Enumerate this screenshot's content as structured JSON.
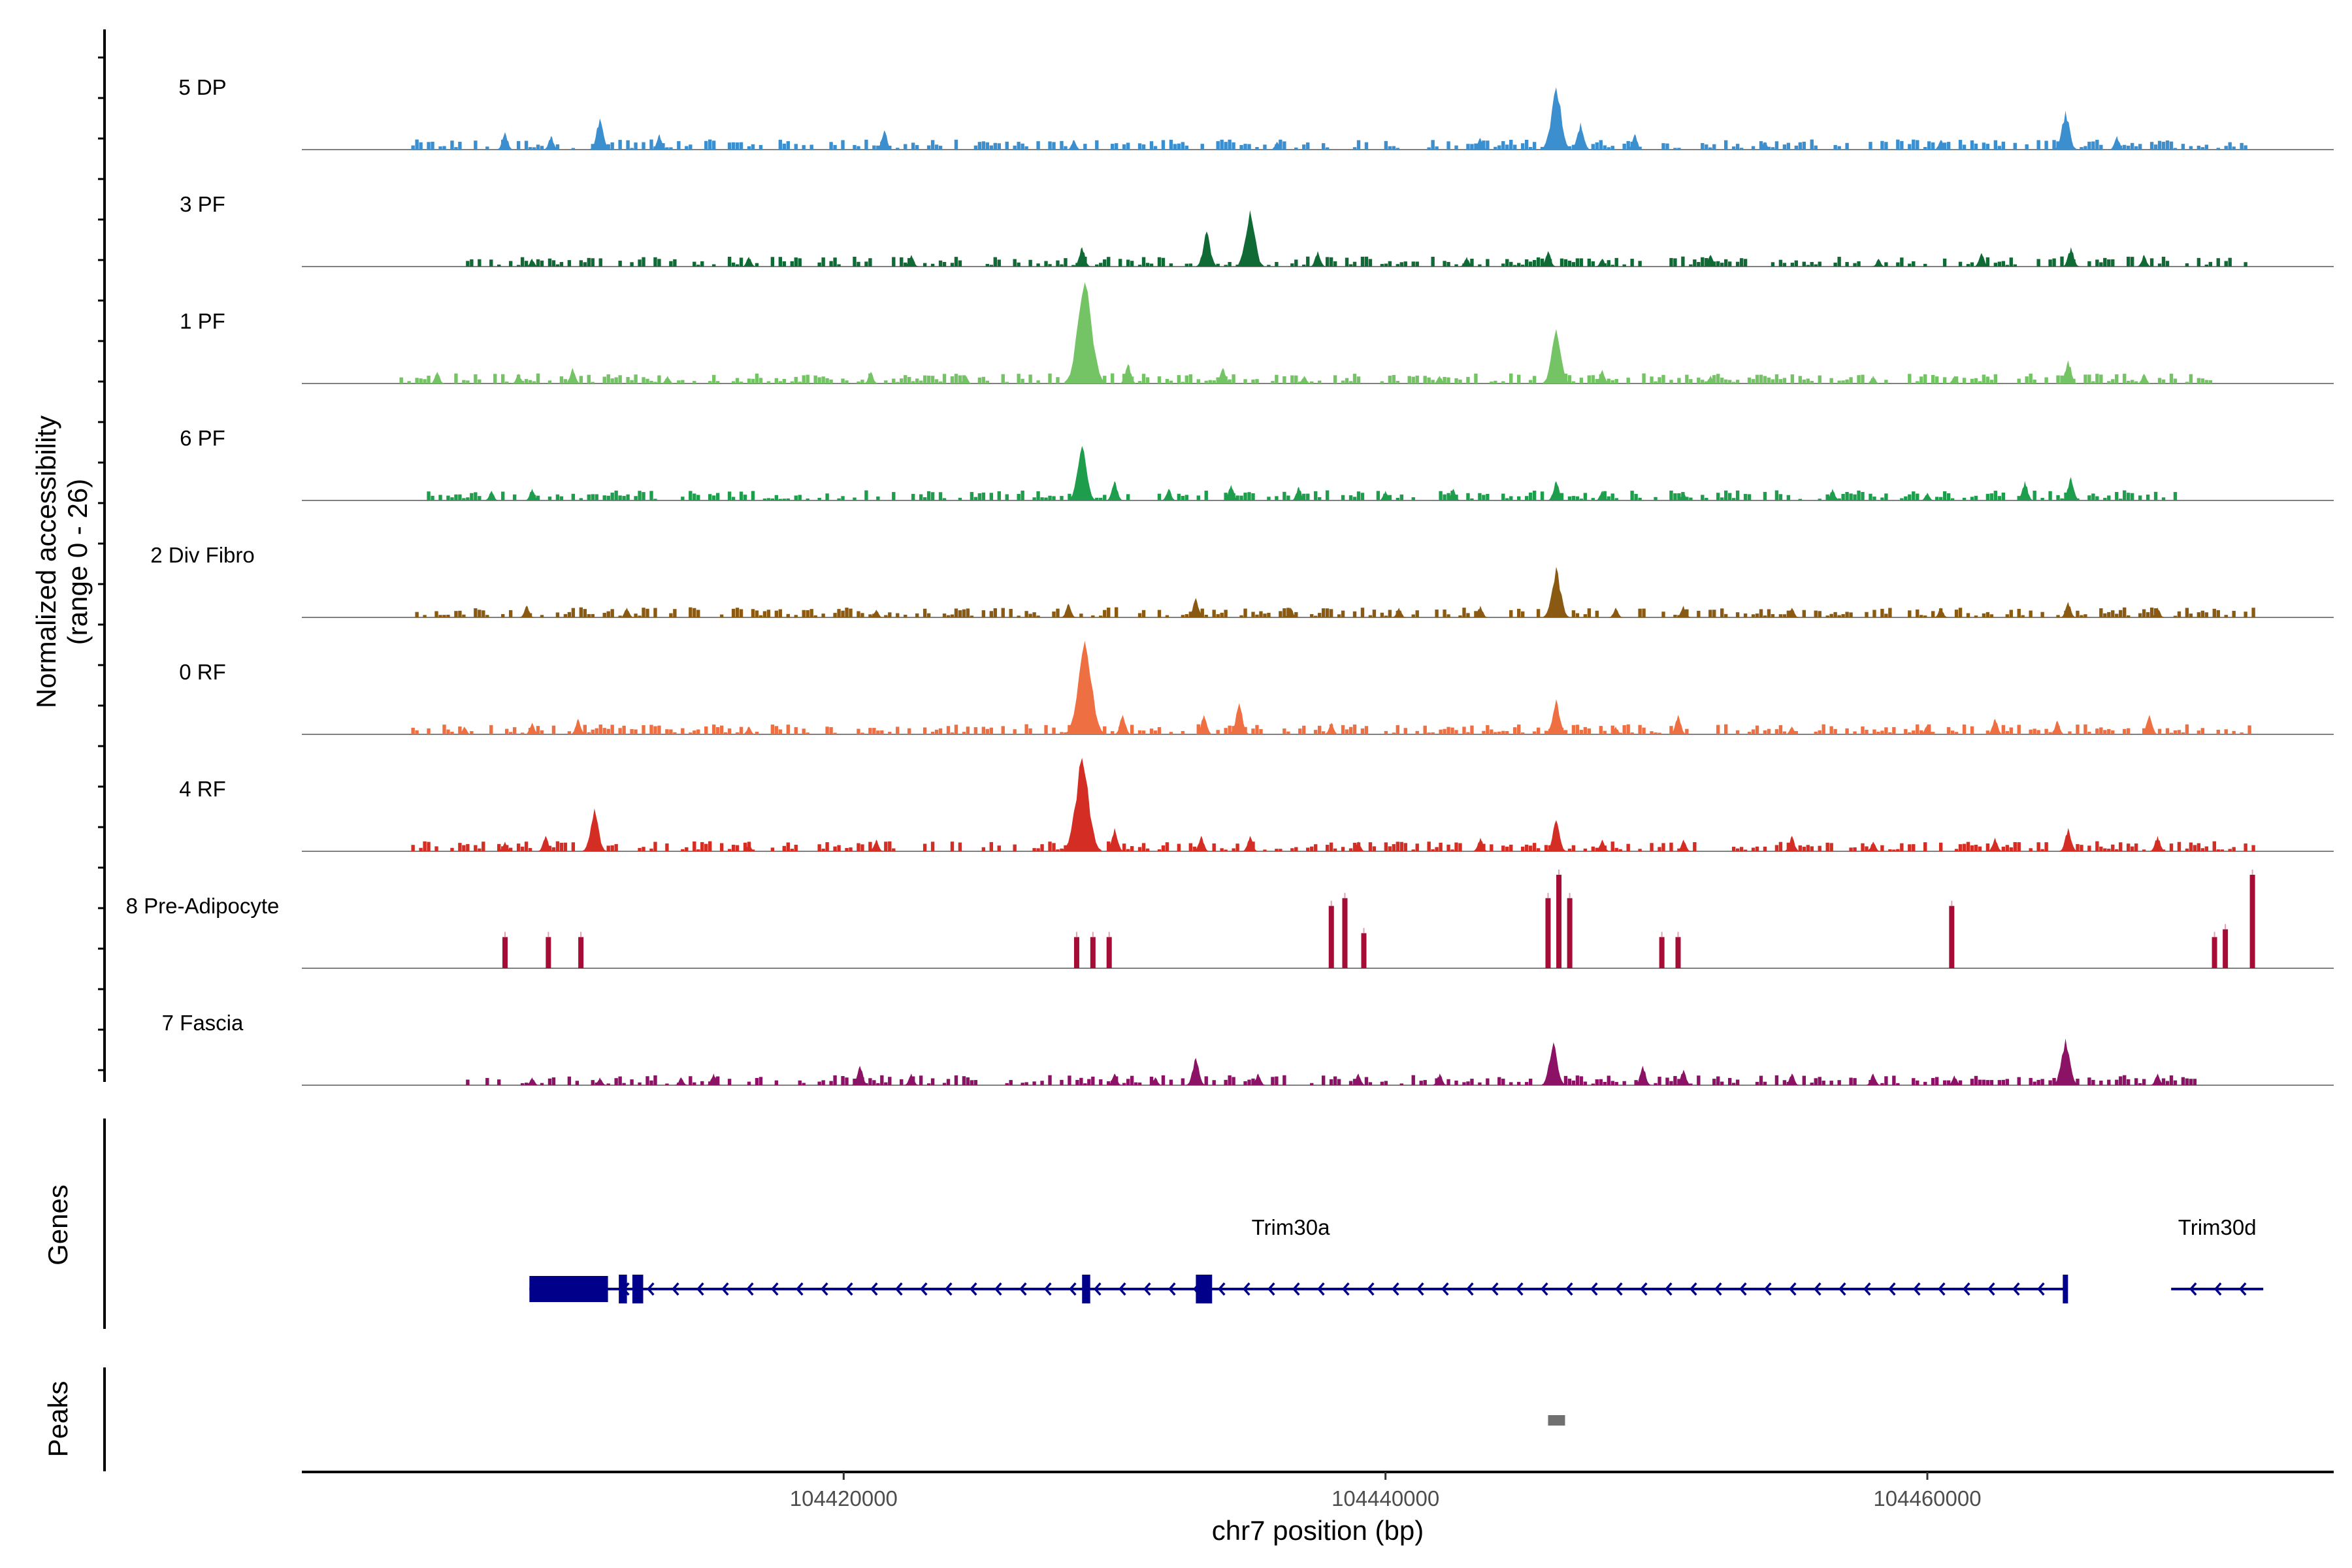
{
  "chart_data": {
    "type": "area",
    "chromosome": "chr7",
    "region": [
      104400000,
      104475000
    ],
    "ylabel": "Normalized accessibility\n(range 0 - 26)",
    "ylabel_line1": "Normalized accessibility",
    "ylabel_line2": "(range 0 - 26)",
    "ylim": [
      0,
      26
    ],
    "xlabel": "chr7 position (bp)",
    "x_ticks": [
      104420000,
      104440000,
      104460000
    ],
    "x_tick_labels": [
      "104420000",
      "104440000",
      "104460000"
    ],
    "genes_panel_label": "Genes",
    "peaks_panel_label": "Peaks",
    "series": [
      {
        "name": "5 DP",
        "color": "#3b8fcf",
        "coverage": [
          104404000,
          104472000
        ],
        "peaks": [
          [
            104407500,
            4.5
          ],
          [
            104409200,
            3.5
          ],
          [
            104411000,
            8
          ],
          [
            104413200,
            4
          ],
          [
            104421500,
            5
          ],
          [
            104428500,
            2.5
          ],
          [
            104436000,
            2
          ],
          [
            104443500,
            3
          ],
          [
            104446300,
            16
          ],
          [
            104447200,
            7
          ],
          [
            104449200,
            4
          ],
          [
            104454000,
            2
          ],
          [
            104460500,
            2.5
          ],
          [
            104465100,
            10
          ],
          [
            104467000,
            3.5
          ]
        ]
      },
      {
        "name": "3 PF",
        "color": "#0f6a35",
        "coverage": [
          104406000,
          104472000
        ],
        "peaks": [
          [
            104408500,
            2
          ],
          [
            104416500,
            2.5
          ],
          [
            104422500,
            3
          ],
          [
            104428800,
            5
          ],
          [
            104433400,
            9
          ],
          [
            104435000,
            14.5
          ],
          [
            104437500,
            4
          ],
          [
            104443000,
            2.5
          ],
          [
            104446000,
            4
          ],
          [
            104448000,
            2
          ],
          [
            104452000,
            3
          ],
          [
            104458200,
            2
          ],
          [
            104462000,
            3.5
          ],
          [
            104465300,
            5
          ],
          [
            104468000,
            3
          ]
        ]
      },
      {
        "name": "1 PF",
        "color": "#74c465",
        "coverage": [
          104403500,
          104470500
        ],
        "peaks": [
          [
            104405000,
            3
          ],
          [
            104408000,
            2.5
          ],
          [
            104410000,
            4
          ],
          [
            104413500,
            2
          ],
          [
            104421000,
            3
          ],
          [
            104424500,
            2
          ],
          [
            104428900,
            26
          ],
          [
            104430500,
            5
          ],
          [
            104434000,
            4
          ],
          [
            104437000,
            2
          ],
          [
            104442000,
            2
          ],
          [
            104446300,
            14
          ],
          [
            104448000,
            3.5
          ],
          [
            104452000,
            2
          ],
          [
            104458000,
            2
          ],
          [
            104461000,
            2
          ],
          [
            104465200,
            6
          ],
          [
            104468000,
            2.5
          ]
        ]
      },
      {
        "name": "6 PF",
        "color": "#1e9e4d",
        "coverage": [
          104404500,
          104469500
        ],
        "peaks": [
          [
            104407000,
            2.5
          ],
          [
            104408500,
            3
          ],
          [
            104428800,
            14
          ],
          [
            104430000,
            5
          ],
          [
            104432000,
            3
          ],
          [
            104434300,
            4
          ],
          [
            104436800,
            3.5
          ],
          [
            104440000,
            2.5
          ],
          [
            104442500,
            3
          ],
          [
            104446300,
            5
          ],
          [
            104448000,
            2.5
          ],
          [
            104451000,
            2
          ],
          [
            104456500,
            3
          ],
          [
            104460000,
            2
          ],
          [
            104463600,
            5
          ],
          [
            104465300,
            6
          ]
        ]
      },
      {
        "name": "2 Div Fibro",
        "color": "#8b5a12",
        "coverage": [
          104404000,
          104472000
        ],
        "peaks": [
          [
            104408300,
            3
          ],
          [
            104412000,
            2.5
          ],
          [
            104421200,
            2
          ],
          [
            104428300,
            3.5
          ],
          [
            104433000,
            5
          ],
          [
            104436500,
            2.5
          ],
          [
            104440500,
            2.5
          ],
          [
            104443500,
            3
          ],
          [
            104446300,
            13
          ],
          [
            104448500,
            2.5
          ],
          [
            104451000,
            3
          ],
          [
            104455000,
            2.5
          ],
          [
            104460500,
            2.5
          ],
          [
            104465200,
            4
          ],
          [
            104468500,
            2.5
          ]
        ]
      },
      {
        "name": "0 RF",
        "color": "#ee7042",
        "coverage": [
          104403500,
          104472000
        ],
        "peaks": [
          [
            104406000,
            2
          ],
          [
            104408500,
            3
          ],
          [
            104410200,
            4
          ],
          [
            104416500,
            2
          ],
          [
            104428900,
            24
          ],
          [
            104430300,
            5
          ],
          [
            104433300,
            5
          ],
          [
            104434600,
            8
          ],
          [
            104438000,
            3
          ],
          [
            104446300,
            9
          ],
          [
            104448500,
            2
          ],
          [
            104450800,
            5
          ],
          [
            104455000,
            2
          ],
          [
            104460000,
            2.5
          ],
          [
            104462500,
            4
          ],
          [
            104464800,
            3.5
          ],
          [
            104468200,
            5
          ]
        ]
      },
      {
        "name": "4 RF",
        "color": "#d42d23",
        "coverage": [
          104404000,
          104472000
        ],
        "peaks": [
          [
            104407500,
            2.5
          ],
          [
            104409000,
            4
          ],
          [
            104410800,
            11
          ],
          [
            104416500,
            2
          ],
          [
            104421200,
            3
          ],
          [
            104428800,
            24
          ],
          [
            104430000,
            6
          ],
          [
            104433200,
            4
          ],
          [
            104435000,
            4
          ],
          [
            104439000,
            2.5
          ],
          [
            104443500,
            3.5
          ],
          [
            104446300,
            8
          ],
          [
            104448000,
            3
          ],
          [
            104451000,
            3
          ],
          [
            104455000,
            4
          ],
          [
            104458000,
            2.5
          ],
          [
            104462500,
            3.5
          ],
          [
            104465200,
            6
          ],
          [
            104468500,
            4
          ]
        ]
      },
      {
        "name": "8 Pre-Adipocyte",
        "color": "#a50c36",
        "coverage": null,
        "peaks": [
          [
            104407500,
            8
          ],
          [
            104409100,
            8
          ],
          [
            104410300,
            8
          ],
          [
            104428600,
            8
          ],
          [
            104429200,
            8
          ],
          [
            104429800,
            8
          ],
          [
            104438000,
            16
          ],
          [
            104438500,
            18
          ],
          [
            104439200,
            9
          ],
          [
            104446000,
            18
          ],
          [
            104446400,
            24
          ],
          [
            104446800,
            18
          ],
          [
            104450200,
            8
          ],
          [
            104450800,
            8
          ],
          [
            104460900,
            16
          ],
          [
            104470600,
            8
          ],
          [
            104471000,
            10
          ],
          [
            104472000,
            24
          ]
        ]
      },
      {
        "name": "7 Fascia",
        "color": "#8c1266",
        "coverage": [
          104406000,
          104470000
        ],
        "peaks": [
          [
            104408500,
            2
          ],
          [
            104411000,
            2
          ],
          [
            104414000,
            2
          ],
          [
            104415200,
            3
          ],
          [
            104420600,
            5
          ],
          [
            104422500,
            3
          ],
          [
            104430000,
            3
          ],
          [
            104431500,
            2
          ],
          [
            104433000,
            7
          ],
          [
            104435300,
            3
          ],
          [
            104439000,
            3
          ],
          [
            104442000,
            3
          ],
          [
            104446200,
            11
          ],
          [
            104449500,
            5
          ],
          [
            104451000,
            4
          ],
          [
            104455000,
            3
          ],
          [
            104458000,
            3
          ],
          [
            104461000,
            2.5
          ],
          [
            104465100,
            12
          ],
          [
            104468500,
            3
          ]
        ]
      }
    ],
    "genes": [
      {
        "name": "Trim30a",
        "start": 104408400,
        "end": 104465100,
        "strand": "-",
        "exons": [
          [
            104408400,
            104411300
          ],
          [
            104411700,
            104412000
          ],
          [
            104412200,
            104412600
          ],
          [
            104428800,
            104429100
          ],
          [
            104433000,
            104433600
          ],
          [
            104465000,
            104465150
          ]
        ]
      },
      {
        "name": "Trim30d",
        "start": 104469000,
        "end": 104472400,
        "strand": "-",
        "exons": []
      }
    ],
    "peaks_track": [
      [
        104446000,
        104446600
      ]
    ]
  }
}
